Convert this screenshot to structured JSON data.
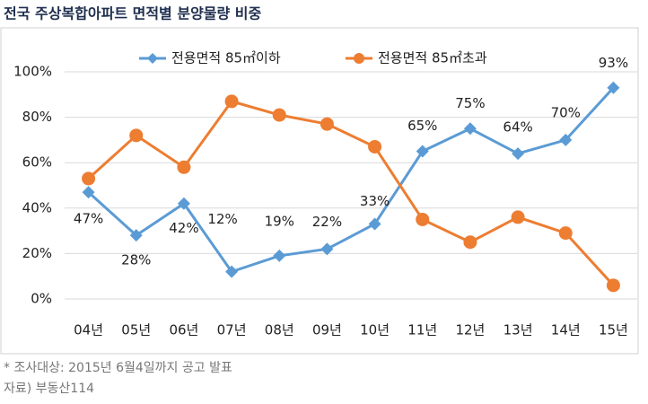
{
  "chart_data": {
    "type": "line",
    "title": "전국 주상복합아파트 면적별 분양물량 비중",
    "categories": [
      "04년",
      "05년",
      "06년",
      "07년",
      "08년",
      "09년",
      "10년",
      "11년",
      "12년",
      "13년",
      "14년",
      "15년"
    ],
    "series": [
      {
        "name": "전용면적 85㎡이하",
        "color": "#5b9bd5",
        "marker": "diamond",
        "values": [
          47,
          28,
          42,
          12,
          19,
          22,
          33,
          65,
          75,
          64,
          70,
          93
        ],
        "value_labels": [
          "47%",
          "28%",
          "42%",
          "12%",
          "19%",
          "22%",
          "33%",
          "65%",
          "75%",
          "64%",
          "70%",
          "93%"
        ]
      },
      {
        "name": "전용면적 85㎡초과",
        "color": "#ed7d31",
        "marker": "circle",
        "values": [
          53,
          72,
          58,
          87,
          81,
          77,
          67,
          35,
          25,
          36,
          29,
          6
        ]
      }
    ],
    "ylim": [
      0,
      100
    ],
    "yticks": [
      {
        "value": 0,
        "label": "0%"
      },
      {
        "value": 20,
        "label": "20%"
      },
      {
        "value": 40,
        "label": "40%"
      },
      {
        "value": 60,
        "label": "60%"
      },
      {
        "value": 80,
        "label": "80%"
      },
      {
        "value": 100,
        "label": "100%"
      }
    ],
    "grid": true,
    "legend": "top",
    "notes": [
      "* 조사대상: 2015년 6월4일까지 공고 발표",
      "자료) 부동산114"
    ]
  }
}
